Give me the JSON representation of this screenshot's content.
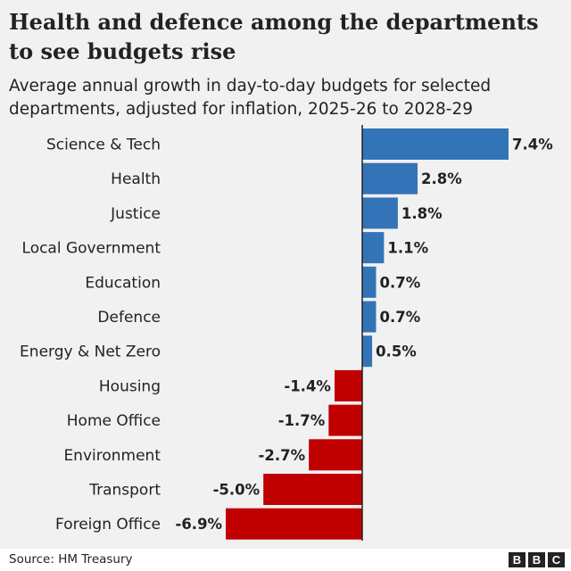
{
  "chart_data": {
    "type": "bar",
    "orientation": "horizontal",
    "title": "Health and defence among the departments to see budgets rise",
    "subtitle": "Average annual growth in day-to-day budgets for selected departments, adjusted for inflation, 2025-26 to 2028-29",
    "categories": [
      "Science & Tech",
      "Health",
      "Justice",
      "Local Government",
      "Education",
      "Defence",
      "Energy & Net Zero",
      "Housing",
      "Home Office",
      "Environment",
      "Transport",
      "Foreign Office"
    ],
    "values": [
      7.4,
      2.8,
      1.8,
      1.1,
      0.7,
      0.7,
      0.5,
      -1.4,
      -1.7,
      -2.7,
      -5.0,
      -6.9
    ],
    "value_labels": [
      "7.4%",
      "2.8%",
      "1.8%",
      "1.1%",
      "0.7%",
      "0.7%",
      "0.5%",
      "-1.4%",
      "-1.7%",
      "-2.7%",
      "-5.0%",
      "-6.9%"
    ],
    "xlim": [
      -6.9,
      7.4
    ],
    "positive_color": "#3374b8",
    "negative_color": "#c00000",
    "source": "Source: HM Treasury"
  },
  "branding": {
    "logo_letters": [
      "B",
      "B",
      "C"
    ]
  }
}
